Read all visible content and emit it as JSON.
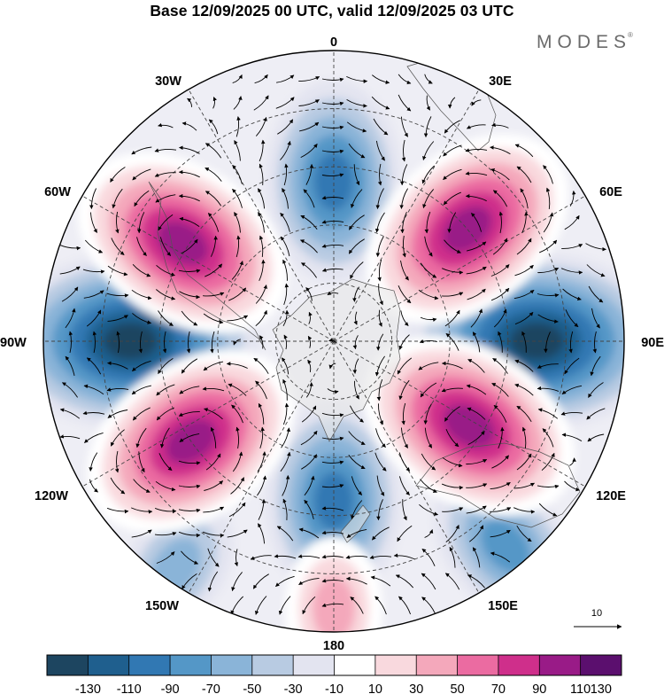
{
  "title": "Base 12/09/2025 00 UTC, valid 12/09/2025 03 UTC",
  "brand": {
    "name": "MODES",
    "mark": "®"
  },
  "longitude_labels": {
    "top": "0",
    "bottom": "180",
    "left": "90W",
    "right": "90E",
    "upper_left_1": "30W",
    "upper_left_2": "60W",
    "upper_right_1": "30E",
    "upper_right_2": "60E",
    "lower_left_1": "120W",
    "lower_left_2": "150W",
    "lower_right_1": "120E",
    "lower_right_2": "150E"
  },
  "reference_vector": {
    "value": "10"
  },
  "colorbar": {
    "colors": [
      "#1d4560",
      "#1f5f8e",
      "#3178b3",
      "#5497c7",
      "#8ab4d8",
      "#b8cbe2",
      "#e3e4f0",
      "#ffffff",
      "#f9d9de",
      "#f4a8bb",
      "#eb6ba1",
      "#cf2f8b",
      "#991b87",
      "#5b0f6e"
    ],
    "labels": [
      "-130",
      "-110",
      "-90",
      "-70",
      "-50",
      "-30",
      "-10",
      "10",
      "30",
      "50",
      "70",
      "90",
      "110",
      "130"
    ]
  },
  "anomaly_cells": [
    {
      "name": "west",
      "value": -140,
      "lon": -90,
      "rho": 0.7
    },
    {
      "name": "east",
      "value": -130,
      "lon": 90,
      "rho": 0.7
    },
    {
      "name": "north",
      "value": -90,
      "lon": 0,
      "rho": 0.55
    },
    {
      "name": "south",
      "value": -90,
      "lon": 180,
      "rho": 0.55
    },
    {
      "name": "southeast",
      "value": -70,
      "lon": 140,
      "rho": 0.92
    },
    {
      "name": "southwest",
      "value": -50,
      "lon": -145,
      "rho": 0.95
    },
    {
      "name": "northwest",
      "value": 125,
      "lon": -57,
      "rho": 0.62
    },
    {
      "name": "northeast",
      "value": 110,
      "lon": 50,
      "rho": 0.6
    },
    {
      "name": "lower-west",
      "value": 125,
      "lon": -125,
      "rho": 0.6
    },
    {
      "name": "lower-east",
      "value": 115,
      "lon": 122,
      "rho": 0.55
    },
    {
      "name": "south-pole",
      "value": 55,
      "lon": 180,
      "rho": 0.92
    }
  ]
}
